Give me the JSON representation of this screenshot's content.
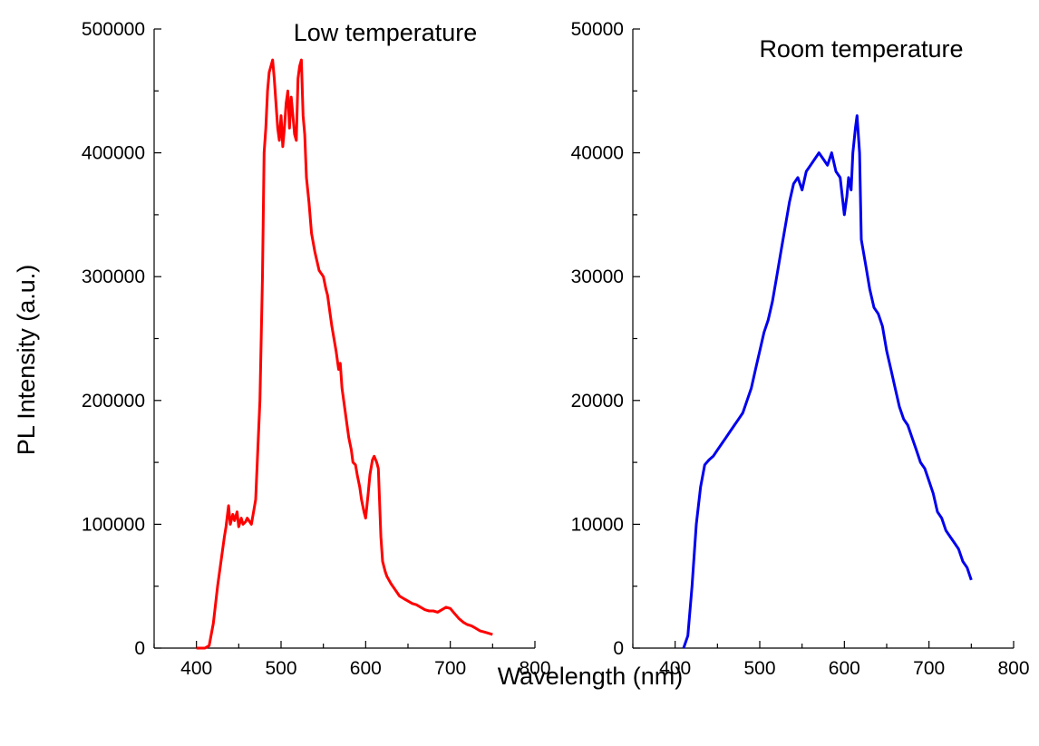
{
  "chart_data": [
    {
      "type": "line",
      "title": "Low temperature",
      "xlabel": "Wavelength (nm)",
      "ylabel": "PL Intensity (a.u.)",
      "xlim": [
        350,
        800
      ],
      "ylim": [
        0,
        500000
      ],
      "xticks": [
        400,
        500,
        600,
        700,
        800
      ],
      "yticks": [
        0,
        100000,
        200000,
        300000,
        400000,
        500000
      ],
      "color": "#ff0000",
      "series": [
        {
          "x": [
            400,
            410,
            415,
            420,
            425,
            430,
            433,
            435,
            438,
            440,
            443,
            445,
            448,
            450,
            453,
            455,
            458,
            460,
            465,
            470,
            475,
            478,
            480,
            482,
            484,
            486,
            488,
            490,
            492,
            494,
            496,
            498,
            500,
            502,
            504,
            506,
            508,
            510,
            512,
            514,
            516,
            518,
            520,
            522,
            524,
            526,
            528,
            530,
            533,
            536,
            540,
            545,
            550,
            553,
            555,
            558,
            560,
            565,
            568,
            570,
            572,
            575,
            578,
            580,
            583,
            585,
            588,
            590,
            593,
            595,
            598,
            600,
            603,
            605,
            608,
            610,
            613,
            615,
            618,
            620,
            623,
            625,
            630,
            635,
            640,
            645,
            650,
            655,
            660,
            665,
            670,
            675,
            680,
            685,
            690,
            695,
            700,
            705,
            710,
            715,
            720,
            725,
            730,
            735,
            740,
            745,
            750
          ],
          "y": [
            0,
            0,
            2000,
            20000,
            50000,
            75000,
            90000,
            98000,
            115000,
            100000,
            108000,
            103000,
            110000,
            98000,
            105000,
            100000,
            102000,
            105000,
            100000,
            120000,
            200000,
            300000,
            400000,
            420000,
            450000,
            465000,
            470000,
            475000,
            460000,
            440000,
            420000,
            410000,
            430000,
            405000,
            420000,
            440000,
            450000,
            420000,
            445000,
            430000,
            415000,
            410000,
            460000,
            470000,
            475000,
            430000,
            415000,
            380000,
            360000,
            335000,
            320000,
            305000,
            300000,
            290000,
            285000,
            270000,
            260000,
            240000,
            225000,
            230000,
            210000,
            195000,
            180000,
            170000,
            160000,
            150000,
            148000,
            140000,
            130000,
            120000,
            110000,
            105000,
            125000,
            140000,
            152000,
            155000,
            150000,
            145000,
            90000,
            70000,
            62000,
            58000,
            52000,
            47000,
            42000,
            40000,
            38000,
            36000,
            35000,
            33000,
            31000,
            30000,
            30000,
            29000,
            31000,
            33000,
            32000,
            28000,
            24000,
            21000,
            19000,
            18000,
            16000,
            14000,
            13000,
            12000,
            11000
          ]
        }
      ]
    },
    {
      "type": "line",
      "title": "Room temperature",
      "xlabel": "Wavelength (nm)",
      "ylabel": "",
      "xlim": [
        350,
        800
      ],
      "ylim": [
        0,
        50000
      ],
      "xticks": [
        400,
        500,
        600,
        700,
        800
      ],
      "yticks": [
        0,
        10000,
        20000,
        30000,
        40000,
        50000
      ],
      "color": "#0000ee",
      "series": [
        {
          "x": [
            410,
            415,
            420,
            425,
            430,
            435,
            440,
            445,
            450,
            455,
            460,
            465,
            470,
            475,
            480,
            485,
            490,
            495,
            500,
            505,
            510,
            515,
            520,
            525,
            530,
            535,
            540,
            545,
            550,
            555,
            560,
            565,
            570,
            575,
            580,
            585,
            590,
            595,
            600,
            603,
            605,
            608,
            610,
            613,
            615,
            618,
            620,
            625,
            630,
            635,
            640,
            645,
            650,
            655,
            660,
            665,
            670,
            675,
            680,
            685,
            690,
            695,
            700,
            705,
            710,
            715,
            720,
            725,
            730,
            735,
            740,
            745,
            750
          ],
          "y": [
            0,
            1000,
            5000,
            10000,
            13000,
            14800,
            15200,
            15500,
            16000,
            16500,
            17000,
            17500,
            18000,
            18500,
            19000,
            20000,
            21000,
            22500,
            24000,
            25500,
            26500,
            28000,
            30000,
            32000,
            34000,
            36000,
            37500,
            38000,
            37000,
            38500,
            39000,
            39500,
            40000,
            39500,
            39000,
            40000,
            38500,
            38000,
            35000,
            36500,
            38000,
            37000,
            40000,
            42000,
            43000,
            40000,
            33000,
            31000,
            29000,
            27500,
            27000,
            26000,
            24000,
            22500,
            21000,
            19500,
            18500,
            18000,
            17000,
            16000,
            15000,
            14500,
            13500,
            12500,
            11000,
            10500,
            9500,
            9000,
            8500,
            8000,
            7000,
            6500,
            5500
          ]
        }
      ]
    }
  ]
}
